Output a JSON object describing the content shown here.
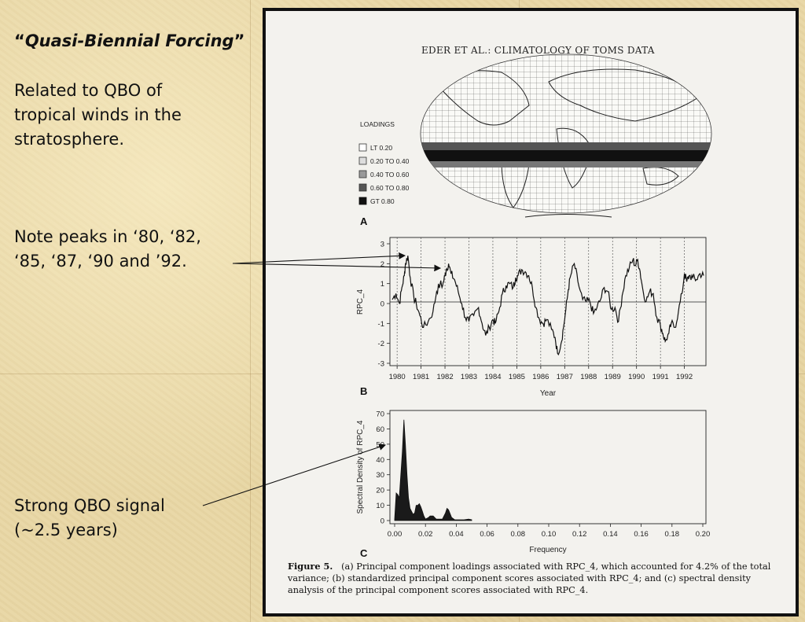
{
  "slide": {
    "title_open_quote": "“",
    "title": "Quasi-Biennial Forcing",
    "title_close_quote": "”",
    "para1": [
      "Related to QBO of",
      "tropical winds in the",
      "stratosphere."
    ],
    "para2": [
      "Note peaks in ‘80, ‘82,",
      "‘85, ‘87, ‘90 and ’92."
    ],
    "para3": [
      "Strong QBO signal",
      "(~2.5 years)"
    ]
  },
  "paper": {
    "header": "EDER ET AL.: CLIMATOLOGY OF TOMS DATA",
    "legend_title": "LOADINGS",
    "legend_items": [
      "LT 0.20",
      "0.20 TO 0.40",
      "0.40 TO 0.60",
      "0.60 TO 0.80",
      "GT 0.80"
    ],
    "panel_a_label": "A",
    "panel_b_label": "B",
    "panel_c_label": "C",
    "caption_lead": "Figure 5.",
    "caption_body": "(a) Principal component loadings associated with RPC_4, which accounted for 4.2% of the total variance; (b) standardized principal component scores associated with RPC_4; and (c) spectral density analysis of the principal component scores associated with RPC_4."
  },
  "chart_data": [
    {
      "type": "line",
      "panel": "B",
      "xlabel": "Year",
      "ylabel": "RPC_4",
      "ylim": [
        -3,
        3
      ],
      "yticks": [
        "3",
        "2",
        "1",
        "0",
        "-1",
        "-2",
        "-3"
      ],
      "xticks": [
        "1980",
        "1981",
        "1982",
        "1983",
        "1984",
        "1985",
        "1986",
        "1987",
        "1988",
        "1989",
        "1990",
        "1991",
        "1992"
      ],
      "xlim": [
        1979.7,
        1992.9
      ],
      "dashed_gridlines_at_years": [
        1980,
        1981,
        1982,
        1983,
        1984,
        1985,
        1986,
        1987,
        1988,
        1989,
        1990,
        1991,
        1992
      ],
      "x": [
        1979.8,
        1979.95,
        1980.1,
        1980.2,
        1980.3,
        1980.35,
        1980.45,
        1980.55,
        1980.7,
        1980.8,
        1980.95,
        1981.1,
        1981.3,
        1981.5,
        1981.65,
        1981.8,
        1981.9,
        1982.0,
        1982.05,
        1982.15,
        1982.25,
        1982.4,
        1982.55,
        1982.7,
        1982.85,
        1983.0,
        1983.2,
        1983.4,
        1983.55,
        1983.7,
        1983.85,
        1984.0,
        1984.1,
        1984.25,
        1984.4,
        1984.55,
        1984.7,
        1984.85,
        1984.95,
        1985.05,
        1985.2,
        1985.35,
        1985.5,
        1985.65,
        1985.8,
        1985.95,
        1986.1,
        1986.25,
        1986.45,
        1986.6,
        1986.7,
        1986.85,
        1986.95,
        1987.05,
        1987.15,
        1987.25,
        1987.4,
        1987.55,
        1987.75,
        1987.9,
        1988.05,
        1988.2,
        1988.35,
        1988.5,
        1988.65,
        1988.8,
        1988.95,
        1989.1,
        1989.25,
        1989.4,
        1989.55,
        1989.7,
        1989.85,
        1989.95,
        1990.05,
        1990.15,
        1990.25,
        1990.4,
        1990.55,
        1990.7,
        1990.85,
        1991.0,
        1991.1,
        1991.2,
        1991.35,
        1991.45,
        1991.6,
        1991.75,
        1991.9,
        1992.0,
        1992.1,
        1992.2,
        1992.35,
        1992.5,
        1992.65,
        1992.8
      ],
      "y": [
        0.2,
        0.5,
        0.0,
        0.8,
        1.4,
        2.0,
        2.4,
        1.3,
        0.3,
        0.0,
        -0.6,
        -1.2,
        -0.9,
        -0.4,
        0.6,
        1.0,
        0.9,
        1.4,
        1.7,
        2.0,
        1.5,
        1.2,
        0.6,
        0.0,
        -0.7,
        -0.9,
        -0.6,
        -0.2,
        -1.0,
        -1.6,
        -1.2,
        -0.8,
        -1.0,
        -0.4,
        0.5,
        0.9,
        1.0,
        0.8,
        1.3,
        1.4,
        1.7,
        1.6,
        1.4,
        0.8,
        -0.2,
        -0.8,
        -1.0,
        -0.8,
        -1.3,
        -1.7,
        -2.5,
        -2.0,
        -1.2,
        -0.3,
        0.7,
        1.4,
        2.0,
        1.1,
        0.2,
        0.1,
        0.1,
        -0.5,
        -0.2,
        0.2,
        0.8,
        0.6,
        -0.3,
        -0.2,
        -0.9,
        0.4,
        1.4,
        1.8,
        2.2,
        1.9,
        2.2,
        1.6,
        0.8,
        0.1,
        0.6,
        0.5,
        -0.7,
        -1.1,
        -1.5,
        -1.9,
        -1.5,
        -1.0,
        -1.2,
        -0.4,
        0.5,
        1.5,
        1.1,
        1.4,
        1.3,
        1.2,
        1.5,
        1.4
      ]
    },
    {
      "type": "area",
      "panel": "C",
      "xlabel": "Frequency",
      "ylabel": "Spectral Density of RPC_4",
      "ylim": [
        0,
        70
      ],
      "xlim": [
        0,
        0.2
      ],
      "yticks": [
        "70",
        "60",
        "50",
        "40",
        "30",
        "20",
        "10",
        "0"
      ],
      "xticks": [
        "0.00",
        "0.02",
        "0.04",
        "0.06",
        "0.08",
        "0.10",
        "0.12",
        "0.14",
        "0.16",
        "0.18",
        "0.20"
      ],
      "x": [
        0.0,
        0.001,
        0.002,
        0.003,
        0.005,
        0.006,
        0.007,
        0.008,
        0.009,
        0.01,
        0.012,
        0.013,
        0.014,
        0.015,
        0.016,
        0.017,
        0.018,
        0.019,
        0.02,
        0.022,
        0.023,
        0.025,
        0.027,
        0.029,
        0.031,
        0.033,
        0.034,
        0.035,
        0.037,
        0.039,
        0.042,
        0.045,
        0.048,
        0.05
      ],
      "y": [
        1,
        18,
        17,
        15,
        45,
        66,
        50,
        30,
        15,
        8,
        4,
        5,
        10,
        10,
        11,
        9,
        6,
        3,
        1,
        2,
        3,
        3,
        1,
        1,
        1,
        5,
        8,
        7,
        2,
        0.5,
        0.5,
        0.5,
        1,
        0.5
      ]
    }
  ]
}
